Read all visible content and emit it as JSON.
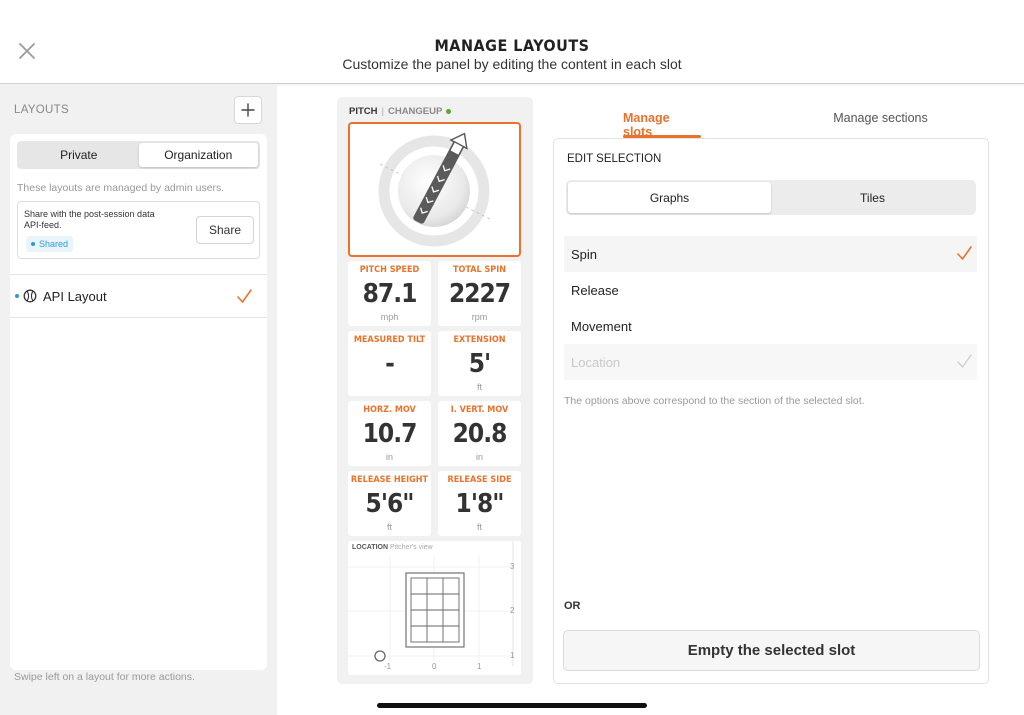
{
  "header": {
    "title": "MANAGE LAYOUTS",
    "subtitle": "Customize the panel by editing the content in each slot"
  },
  "sidebar": {
    "section_label": "LAYOUTS",
    "tabs": [
      {
        "label": "Private",
        "active": false
      },
      {
        "label": "Organization",
        "active": true
      }
    ],
    "managed_note": "These layouts are managed by admin users.",
    "share": {
      "description": "Share with the post-session data API-feed.",
      "badge": "Shared",
      "button_label": "Share"
    },
    "layouts": [
      {
        "name": "API Layout",
        "selected": true
      }
    ],
    "swipe_note": "Swipe left on a layout for more actions."
  },
  "panel": {
    "pitch_label": "PITCH",
    "pitch_type": "CHANGEUP",
    "tiles": [
      {
        "label": "PITCH SPEED",
        "value": "87.1",
        "unit": "mph"
      },
      {
        "label": "TOTAL SPIN",
        "value": "2227",
        "unit": "rpm"
      },
      {
        "label": "MEASURED TILT",
        "value": "-",
        "unit": ""
      },
      {
        "label": "EXTENSION",
        "value": "5'",
        "unit": "ft"
      },
      {
        "label": "HORZ. MOV",
        "value": "10.7",
        "unit": "in"
      },
      {
        "label": "I. VERT. MOV",
        "value": "20.8",
        "unit": "in"
      },
      {
        "label": "RELEASE HEIGHT",
        "value": "5'6\"",
        "unit": "ft"
      },
      {
        "label": "RELEASE SIDE",
        "value": "1'8\"",
        "unit": "ft"
      }
    ],
    "location": {
      "title": "LOCATION",
      "subtitle": "Pitcher's view",
      "x_ticks": [
        "-1",
        "0",
        "1"
      ],
      "y_ticks": [
        "3",
        "2",
        "1"
      ]
    }
  },
  "editor": {
    "tabs": [
      {
        "label": "Manage slots",
        "active": true
      },
      {
        "label": "Manage sections",
        "active": false
      }
    ],
    "edit_title": "EDIT SELECTION",
    "modes": [
      {
        "label": "Graphs",
        "active": true
      },
      {
        "label": "Tiles",
        "active": false
      }
    ],
    "options": [
      {
        "label": "Spin",
        "state": "selected"
      },
      {
        "label": "Release",
        "state": "normal"
      },
      {
        "label": "Movement",
        "state": "normal"
      },
      {
        "label": "Location",
        "state": "disabled"
      }
    ],
    "options_note": "The options above correspond to the section of the selected slot.",
    "or_label": "OR",
    "empty_button": "Empty the selected slot"
  },
  "colors": {
    "accent": "#e8732d",
    "info": "#2b9ad6",
    "live": "#5aa72a"
  }
}
